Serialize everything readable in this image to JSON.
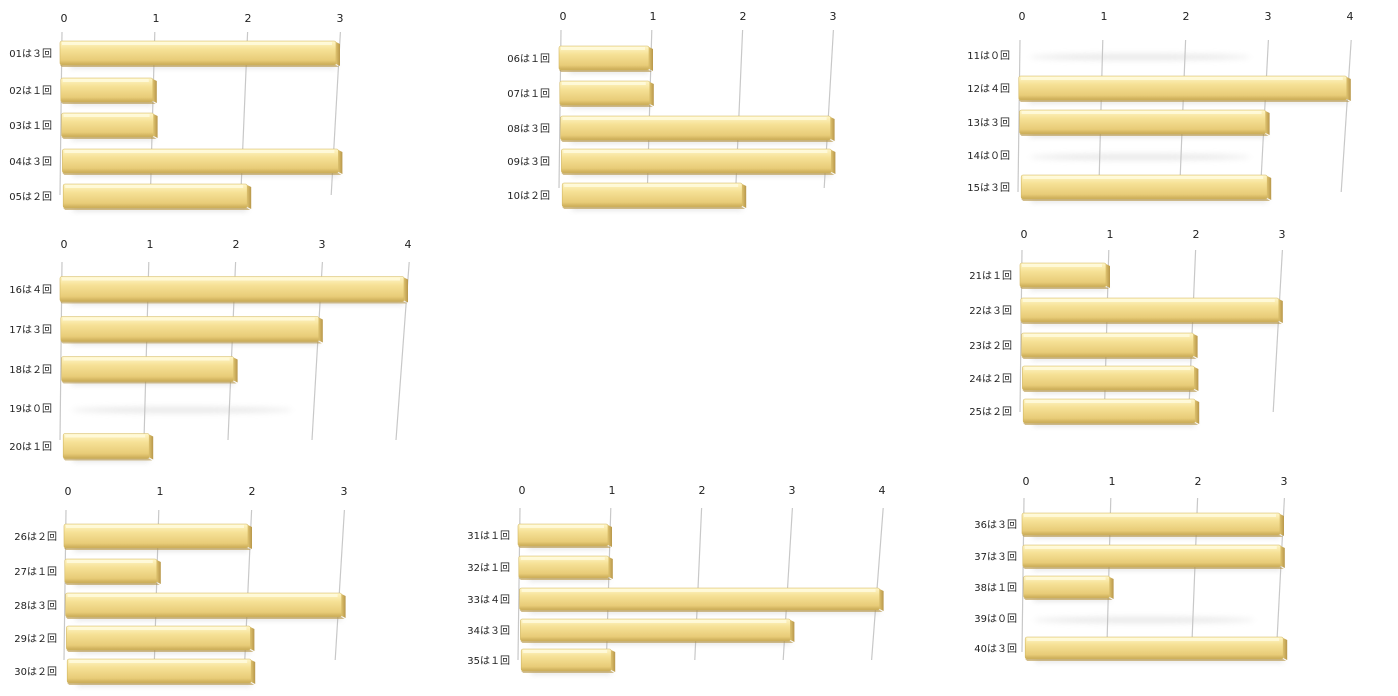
{
  "chart_data": [
    {
      "type": "bar",
      "orientation": "horizontal",
      "categories": [
        "01は３回",
        "02は１回",
        "03は１回",
        "04は３回",
        "05は２回"
      ],
      "values": [
        3,
        1,
        1,
        3,
        2
      ],
      "xlim": [
        0,
        3.3
      ],
      "ticks": [
        0,
        1,
        2,
        3
      ],
      "grid": true
    },
    {
      "type": "bar",
      "orientation": "horizontal",
      "categories": [
        "06は１回",
        "07は１回",
        "08は３回",
        "09は３回",
        "10は２回"
      ],
      "values": [
        1,
        1,
        3,
        3,
        2
      ],
      "xlim": [
        0,
        3.3
      ],
      "ticks": [
        0,
        1,
        2,
        3
      ],
      "grid": true
    },
    {
      "type": "bar",
      "orientation": "horizontal",
      "categories": [
        "11は０回",
        "12は４回",
        "13は３回",
        "14は０回",
        "15は３回"
      ],
      "values": [
        0,
        4,
        3,
        0,
        3
      ],
      "xlim": [
        0,
        4.2
      ],
      "ticks": [
        0,
        1,
        2,
        3,
        4
      ],
      "grid": true
    },
    {
      "type": "bar",
      "orientation": "horizontal",
      "categories": [
        "16は４回",
        "17は３回",
        "18は２回",
        "19は０回",
        "20は１回"
      ],
      "values": [
        4,
        3,
        2,
        0,
        1
      ],
      "xlim": [
        0,
        4.2
      ],
      "ticks": [
        0,
        1,
        2,
        3,
        4
      ],
      "grid": true
    },
    {
      "type": "bar",
      "orientation": "horizontal",
      "categories": [
        "21は１回",
        "22は３回",
        "23は２回",
        "24は２回",
        "25は２回"
      ],
      "values": [
        1,
        3,
        2,
        2,
        2
      ],
      "xlim": [
        0,
        3.3
      ],
      "ticks": [
        0,
        1,
        2,
        3
      ],
      "grid": true
    },
    {
      "type": "bar",
      "orientation": "horizontal",
      "categories": [
        "26は２回",
        "27は１回",
        "28は３回",
        "29は２回",
        "30は２回"
      ],
      "values": [
        2,
        1,
        3,
        2,
        2
      ],
      "xlim": [
        0,
        3.3
      ],
      "ticks": [
        0,
        1,
        2,
        3
      ],
      "grid": true
    },
    {
      "type": "bar",
      "orientation": "horizontal",
      "categories": [
        "31は１回",
        "32は１回",
        "33は４回",
        "34は３回",
        "35は１回"
      ],
      "values": [
        1,
        1,
        4,
        3,
        1
      ],
      "xlim": [
        0,
        4.2
      ],
      "ticks": [
        0,
        1,
        2,
        3,
        4
      ],
      "grid": true
    },
    {
      "type": "bar",
      "orientation": "horizontal",
      "categories": [
        "36は３回",
        "37は３回",
        "38は１回",
        "39は０回",
        "40は３回"
      ],
      "values": [
        3,
        3,
        1,
        0,
        3
      ],
      "xlim": [
        0,
        3.3
      ],
      "ticks": [
        0,
        1,
        2,
        3
      ],
      "grid": true
    }
  ],
  "colors": {
    "bar_top": "#fdf2b8",
    "bar_mid": "#f5df8e",
    "bar_bottom": "#d9bf6a",
    "bar_end": "#c9ab55",
    "grid": "#c8c8c8"
  }
}
